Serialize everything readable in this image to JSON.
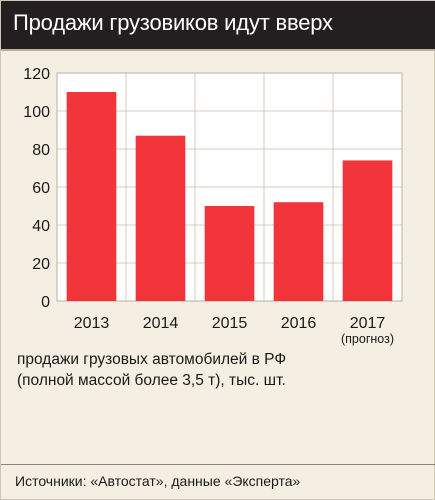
{
  "chart_data": {
    "type": "bar",
    "title": "Продажи грузовиков идут вверх",
    "categories": [
      "2013",
      "2014",
      "2015",
      "2016",
      "2017"
    ],
    "category_notes": [
      "",
      "",
      "",
      "",
      "(прогноз)"
    ],
    "values": [
      110,
      87,
      50,
      52,
      74
    ],
    "ylim": [
      0,
      120
    ],
    "yticks": [
      "0",
      "20",
      "40",
      "60",
      "80",
      "100",
      "120"
    ],
    "grid": true,
    "bar_color": "#f2353a",
    "caption_lines": [
      "продажи грузовых автомобилей в РФ",
      "(полной массой более 3,5 т), тыс. шт."
    ],
    "source": "Источники: «Автостат», данные «Эксперта»"
  }
}
